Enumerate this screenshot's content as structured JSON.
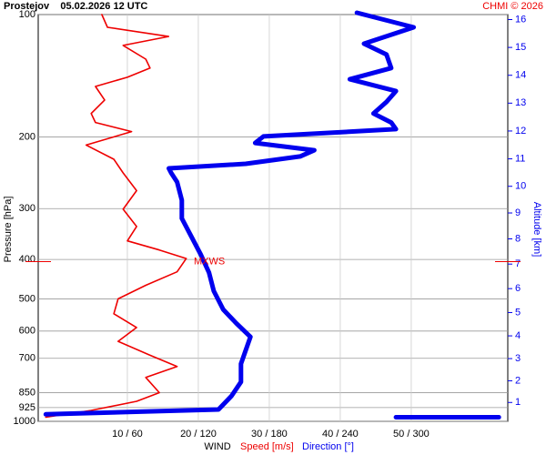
{
  "chart_data": {
    "type": "profile",
    "title": "Prostejov    05.02.2026 12 UTC",
    "credit": "CHMI © 2026",
    "ylabel": "Pressure [hPa]",
    "y2label": "Altitude [km]",
    "xlabel": "WIND",
    "annotation": {
      "text": "MXWS",
      "pressure": 405
    },
    "ylog": true,
    "grid": true,
    "ylim": [
      100,
      1000
    ],
    "yticks": [
      100,
      200,
      300,
      400,
      500,
      600,
      700,
      850,
      925,
      1000
    ],
    "y2ticks": [
      1,
      2,
      3,
      4,
      5,
      6,
      7,
      8,
      9,
      10,
      11,
      12,
      13,
      14,
      15,
      16
    ],
    "xlim": [
      -2.56,
      63.6
    ],
    "x2lim": [
      -15.4,
      381.5
    ],
    "xticks": [
      {
        "value": 10,
        "label": "10 / 60"
      },
      {
        "value": 20,
        "label": "20 / 120"
      },
      {
        "value": 30,
        "label": "30 / 180"
      },
      {
        "value": 40,
        "label": "40 / 240"
      },
      {
        "value": 50,
        "label": "50 / 300"
      }
    ],
    "series": [
      {
        "name": "Speed [m/s]",
        "color": "#ee0000",
        "axis": "x",
        "pressure": [
          100,
          107.5,
          113.2,
          119.1,
          128.7,
          135.4,
          142.6,
          150.2,
          162.2,
          175.1,
          184.2,
          194,
          209.3,
          226.8,
          245.1,
          271,
          301,
          332,
          360,
          379,
          398,
          429,
          463,
          500,
          544,
          588,
          636,
          688,
          733,
          780,
          850,
          893,
          940,
          977
        ],
        "values": [
          6.4,
          7.2,
          15.8,
          9.4,
          12.6,
          13.2,
          10,
          5.5,
          6.8,
          4.9,
          5.5,
          10.6,
          4.2,
          8.1,
          9.4,
          11.3,
          9.4,
          11.3,
          10,
          14.5,
          18.3,
          17,
          12.6,
          8.7,
          8.1,
          11.3,
          8.7,
          13.2,
          17,
          12.6,
          14.5,
          11.3,
          4.9,
          -1.5
        ]
      },
      {
        "name": "Direction [°]",
        "color": "#0000ee",
        "axis": "x2",
        "pressure": [
          99,
          107.5,
          117.9,
          125.4,
          135.4,
          144.2,
          154.2,
          164,
          175.1,
          184.2,
          191.3,
          199.3,
          206.9,
          215.5,
          223.2,
          232.8,
          238.8,
          245.1,
          258,
          286,
          317,
          351,
          389,
          431,
          478,
          531,
          574,
          620,
          669,
          722,
          800,
          866,
          935,
          961,
          null,
          977,
          977
        ],
        "values": [
          254,
          302,
          260,
          279,
          283,
          248,
          287,
          279,
          268,
          283,
          287,
          175,
          168,
          218,
          206,
          160,
          95,
          97,
          102,
          106,
          106,
          114,
          122,
          129,
          133,
          141,
          152,
          164,
          160,
          156,
          156,
          148,
          137,
          -9,
          null,
          287,
          374
        ]
      }
    ]
  }
}
